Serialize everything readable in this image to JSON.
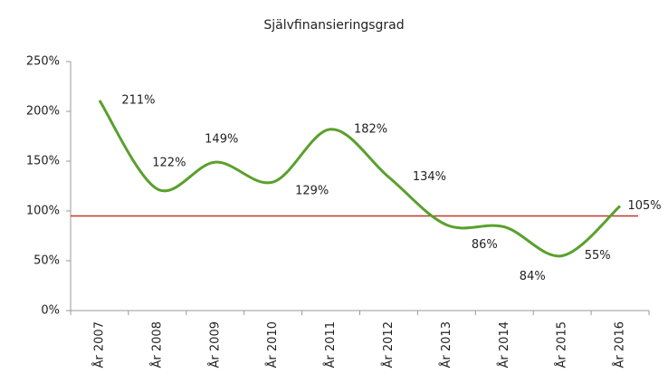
{
  "chart_data": {
    "type": "line",
    "title": "Självfinansieringsgrad",
    "categories": [
      "År 2007",
      "År 2008",
      "År 2009",
      "År 2010",
      "År 2011",
      "År 2012",
      "År 2013",
      "År 2014",
      "År 2015",
      "År 2016"
    ],
    "series": [
      {
        "name": "Självfinansieringsgrad",
        "color": "#5aa02c",
        "values": [
          211,
          122,
          149,
          129,
          182,
          134,
          86,
          84,
          55,
          105
        ],
        "value_labels": [
          "211%",
          "122%",
          "149%",
          "129%",
          "182%",
          "134%",
          "86%",
          "84%",
          "55%",
          "105%"
        ]
      }
    ],
    "reference_line": {
      "value": 95,
      "color": "#c0392b"
    },
    "ylim": [
      0,
      250
    ],
    "yticks": [
      {
        "value": 0,
        "label": "0%"
      },
      {
        "value": 50,
        "label": "50%"
      },
      {
        "value": 100,
        "label": "100%"
      },
      {
        "value": 150,
        "label": "150%"
      },
      {
        "value": 200,
        "label": "200%"
      },
      {
        "value": 250,
        "label": "250%"
      }
    ],
    "grid": false,
    "smooth": true
  }
}
